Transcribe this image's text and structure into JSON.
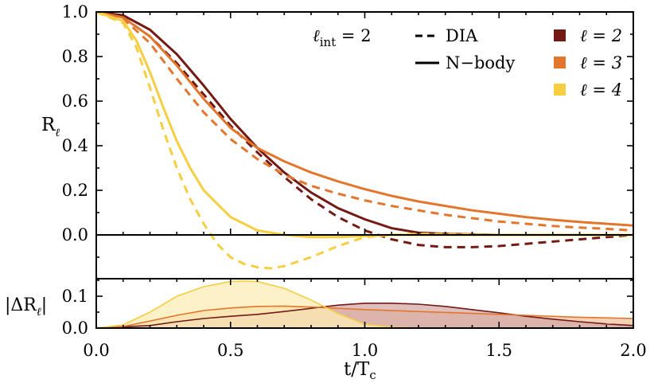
{
  "chart_data": {
    "type": "line",
    "xlabel_main": "t/T",
    "xlabel_sub": "c",
    "xlim": [
      0.0,
      2.0
    ],
    "x_ticks": [
      "0.0",
      "0.5",
      "1.0",
      "1.5",
      "2.0"
    ],
    "x_tick_values": [
      0.0,
      0.5,
      1.0,
      1.5,
      2.0
    ],
    "top_panel": {
      "ylabel_main": "R",
      "ylabel_sub": "ℓ",
      "ylim": [
        -0.22,
        1.0
      ],
      "y_ticks": [
        "0.0",
        "0.2",
        "0.4",
        "0.6",
        "0.8",
        "1.0"
      ],
      "y_tick_values": [
        0.0,
        0.2,
        0.4,
        0.6,
        0.8,
        1.0
      ],
      "annotation": "ℓint = 2",
      "annotation_main": "ℓ",
      "annotation_sub": "int",
      "annotation_rest": " = 2",
      "linestyle_legend": [
        {
          "label": "DIA",
          "style": "dashed"
        },
        {
          "label": "N−body",
          "style": "solid"
        }
      ],
      "series": [
        {
          "name": "ℓ = 2",
          "color": "#741a14",
          "nbody": {
            "x": [
              0,
              0.1,
              0.2,
              0.3,
              0.4,
              0.5,
              0.6,
              0.7,
              0.8,
              0.9,
              1.0,
              1.1,
              1.2,
              1.3,
              1.5,
              2.0
            ],
            "y": [
              1.0,
              0.985,
              0.92,
              0.81,
              0.67,
              0.52,
              0.39,
              0.28,
              0.19,
              0.12,
              0.07,
              0.03,
              0.01,
              0.005,
              0.0,
              0.0
            ]
          },
          "dia": {
            "x": [
              0,
              0.1,
              0.2,
              0.3,
              0.4,
              0.5,
              0.6,
              0.7,
              0.8,
              0.9,
              1.0,
              1.1,
              1.2,
              1.3,
              1.4,
              1.5,
              1.6,
              1.7,
              1.8,
              1.9,
              2.0
            ],
            "y": [
              1.0,
              0.975,
              0.89,
              0.77,
              0.63,
              0.49,
              0.37,
              0.26,
              0.16,
              0.08,
              0.02,
              -0.02,
              -0.045,
              -0.055,
              -0.055,
              -0.05,
              -0.04,
              -0.03,
              -0.02,
              -0.01,
              0.0
            ]
          }
        },
        {
          "name": "ℓ = 3",
          "color": "#e3762d",
          "nbody": {
            "x": [
              0,
              0.1,
              0.2,
              0.3,
              0.4,
              0.5,
              0.6,
              0.7,
              0.8,
              0.9,
              1.0,
              1.1,
              1.2,
              1.3,
              1.4,
              1.5,
              1.6,
              1.7,
              1.8,
              1.9,
              2.0
            ],
            "y": [
              1.0,
              0.975,
              0.89,
              0.76,
              0.61,
              0.48,
              0.39,
              0.33,
              0.28,
              0.24,
              0.205,
              0.175,
              0.15,
              0.13,
              0.11,
              0.095,
              0.08,
              0.068,
              0.058,
              0.05,
              0.042
            ]
          },
          "dia": {
            "x": [
              0,
              0.1,
              0.2,
              0.3,
              0.4,
              0.5,
              0.6,
              0.7,
              0.8,
              0.9,
              1.0,
              1.1,
              1.2,
              1.3,
              1.4,
              1.5,
              1.6,
              1.7,
              1.8,
              1.9,
              2.0
            ],
            "y": [
              1.0,
              0.97,
              0.86,
              0.7,
              0.55,
              0.43,
              0.34,
              0.27,
              0.22,
              0.185,
              0.155,
              0.13,
              0.11,
              0.09,
              0.075,
              0.06,
              0.05,
              0.04,
              0.033,
              0.027,
              0.02
            ]
          }
        },
        {
          "name": "ℓ = 4",
          "color": "#f5ce42",
          "nbody": {
            "x": [
              0,
              0.1,
              0.15,
              0.2,
              0.25,
              0.3,
              0.35,
              0.4,
              0.5,
              0.6,
              0.7,
              0.8,
              0.9,
              1.0,
              1.1,
              1.2,
              1.5,
              2.0
            ],
            "y": [
              1.0,
              0.96,
              0.87,
              0.73,
              0.57,
              0.42,
              0.3,
              0.2,
              0.08,
              0.02,
              0.0,
              -0.01,
              -0.01,
              -0.005,
              0.0,
              0.0,
              0.0,
              0.0
            ]
          },
          "dia": {
            "x": [
              0,
              0.1,
              0.15,
              0.2,
              0.25,
              0.3,
              0.35,
              0.4,
              0.45,
              0.5,
              0.55,
              0.6,
              0.65,
              0.7,
              0.8,
              0.9,
              1.0,
              1.1,
              1.2,
              1.5,
              2.0
            ],
            "y": [
              1.0,
              0.95,
              0.84,
              0.66,
              0.47,
              0.3,
              0.16,
              0.05,
              -0.04,
              -0.1,
              -0.13,
              -0.145,
              -0.15,
              -0.14,
              -0.1,
              -0.05,
              -0.01,
              0.0,
              0.005,
              0.0,
              0.0
            ]
          }
        }
      ]
    },
    "bottom_panel": {
      "ylabel": "|ΔRℓ|",
      "ylabel_main": "|ΔR",
      "ylabel_sub": "ℓ",
      "ylabel_end": "|",
      "ylim": [
        0.0,
        0.155
      ],
      "y_ticks": [
        "0.0",
        "0.1"
      ],
      "y_tick_values": [
        0.0,
        0.1
      ],
      "series": [
        {
          "name": "ℓ = 2",
          "color": "#741a14",
          "fill": "#d4aaa8",
          "x": [
            0,
            0.2,
            0.3,
            0.4,
            0.5,
            0.6,
            0.7,
            0.8,
            0.9,
            1.0,
            1.1,
            1.2,
            1.3,
            1.4,
            1.5,
            1.6,
            1.7,
            1.8,
            1.9,
            2.0
          ],
          "y": [
            0.0,
            0.008,
            0.02,
            0.03,
            0.037,
            0.043,
            0.052,
            0.062,
            0.072,
            0.078,
            0.078,
            0.075,
            0.068,
            0.058,
            0.048,
            0.037,
            0.028,
            0.02,
            0.013,
            0.008
          ]
        },
        {
          "name": "ℓ = 3",
          "color": "#e3762d",
          "fill": "#f2c29c",
          "x": [
            0,
            0.1,
            0.2,
            0.3,
            0.4,
            0.5,
            0.6,
            0.7,
            0.8,
            0.9,
            1.0,
            1.2,
            1.4,
            1.6,
            1.8,
            2.0
          ],
          "y": [
            0.0,
            0.005,
            0.022,
            0.04,
            0.055,
            0.063,
            0.068,
            0.069,
            0.066,
            0.062,
            0.058,
            0.052,
            0.046,
            0.04,
            0.034,
            0.03
          ]
        },
        {
          "name": "ℓ = 4",
          "color": "#f5ce42",
          "fill": "#fbecb4",
          "x": [
            0,
            0.1,
            0.2,
            0.3,
            0.4,
            0.5,
            0.55,
            0.6,
            0.7,
            0.8,
            0.9,
            1.0,
            1.1,
            1.2,
            1.5,
            2.0
          ],
          "y": [
            0.0,
            0.01,
            0.05,
            0.1,
            0.13,
            0.146,
            0.148,
            0.146,
            0.125,
            0.088,
            0.046,
            0.012,
            0.003,
            0.0,
            0.0,
            0.0
          ]
        }
      ]
    }
  }
}
